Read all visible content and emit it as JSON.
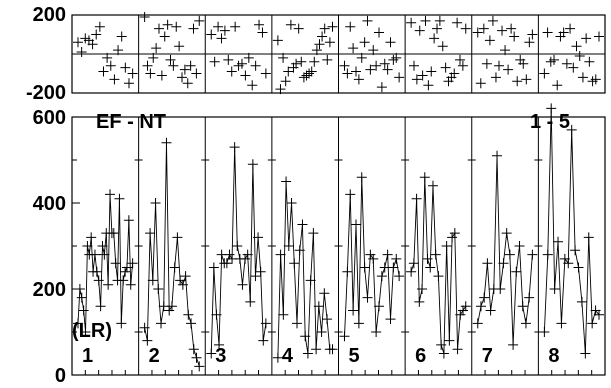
{
  "chart_data": {
    "type": "line",
    "annotations": {
      "top_left": "EF - NT",
      "top_right": "1 - 5",
      "left": "(LR)"
    },
    "panels": [
      "1",
      "2",
      "3",
      "4",
      "5",
      "6",
      "7",
      "8"
    ],
    "residual": {
      "ylim": [
        -200,
        200
      ],
      "ticks": [
        "200",
        "-200"
      ],
      "reference_line": 0,
      "series": [
        [
          60,
          10,
          80,
          70,
          50,
          100,
          140,
          -90,
          -20,
          -60,
          -130,
          20,
          90,
          -70,
          -150,
          -100
        ],
        [
          190,
          -60,
          -100,
          -20,
          30,
          130,
          -110,
          90,
          150,
          -30,
          -60,
          140,
          40,
          -120,
          -80,
          -150,
          -60,
          130,
          -100,
          170
        ],
        [
          100,
          -40,
          140,
          80,
          120,
          -30,
          -90,
          140,
          -60,
          -50,
          -110,
          -20,
          -160,
          -60,
          150,
          110,
          -100
        ],
        [
          70,
          -180,
          -20,
          -140,
          -90,
          150,
          -70,
          -50,
          130,
          -40,
          -120,
          -110,
          -100,
          -90,
          -40,
          20,
          50,
          90,
          130,
          -30,
          60,
          140
        ],
        [
          -60,
          -100,
          140,
          30,
          -90,
          -130,
          -20,
          60,
          170,
          -80,
          20,
          -60,
          110,
          -170,
          -50,
          -80,
          60,
          -30,
          -20,
          -120
        ],
        [
          160,
          -60,
          -130,
          120,
          -110,
          170,
          -160,
          -90,
          80,
          130,
          170,
          40,
          -70,
          -140,
          -120,
          -100,
          160,
          -30,
          -60,
          130
        ],
        [
          110,
          -150,
          130,
          -50,
          70,
          170,
          -120,
          -60,
          120,
          20,
          -80,
          130,
          90,
          -140,
          -30,
          -50,
          -130,
          60,
          100
        ],
        [
          -100,
          110,
          -40,
          -30,
          -160,
          90,
          110,
          -50,
          130,
          -70,
          40,
          -10,
          -120,
          80,
          -40,
          -140,
          -130,
          90
        ]
      ]
    },
    "main": {
      "ylim": [
        0,
        600
      ],
      "ticks": [
        "600",
        "400",
        "200",
        "0"
      ],
      "series": [
        [
          120,
          200,
          180,
          150,
          100,
          300,
          280,
          320,
          240,
          280,
          240,
          220,
          160,
          300,
          280,
          330,
          210,
          420,
          330,
          330,
          260,
          220,
          410,
          120,
          220,
          240,
          250,
          360,
          210,
          260
        ],
        [
          110,
          80,
          330,
          220,
          400,
          200,
          120,
          160,
          540,
          150,
          160,
          250,
          320,
          220,
          210,
          230,
          140,
          120,
          60,
          40,
          20
        ],
        [
          50,
          250,
          140,
          70,
          280,
          260,
          260,
          280,
          270,
          530,
          300,
          270,
          210,
          270,
          280,
          170,
          490,
          230,
          320,
          240,
          80,
          120
        ],
        [
          40,
          280,
          140,
          450,
          300,
          400,
          260,
          120,
          290,
          350,
          90,
          50,
          220,
          330,
          60,
          160,
          100,
          190,
          130,
          60,
          60
        ],
        [
          90,
          240,
          420,
          150,
          350,
          120,
          460,
          250,
          180,
          280,
          270,
          100,
          160,
          230,
          250,
          280,
          130,
          250,
          270,
          230
        ],
        [
          240,
          260,
          410,
          170,
          200,
          460,
          270,
          250,
          440,
          280,
          230,
          70,
          50,
          300,
          80,
          320,
          330,
          60,
          140,
          150,
          160
        ],
        [
          120,
          160,
          180,
          260,
          150,
          200,
          510,
          200,
          260,
          330,
          280,
          70,
          240,
          300,
          160,
          120,
          180,
          280
        ],
        [
          100,
          280,
          620,
          200,
          310,
          120,
          270,
          260,
          570,
          290,
          250,
          170,
          50,
          320,
          120,
          150,
          140
        ]
      ]
    }
  }
}
